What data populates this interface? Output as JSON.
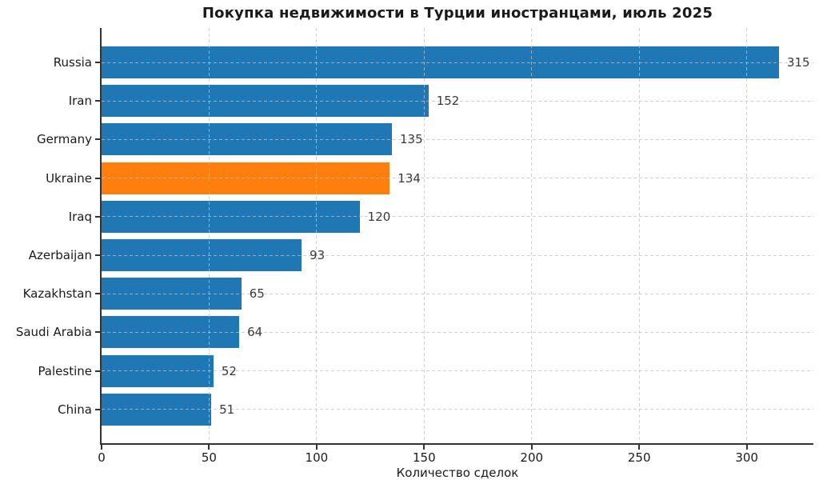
{
  "chart_data": {
    "type": "bar",
    "orientation": "horizontal",
    "title": "Покупка недвижимости в Турции иностранцами, июль 2025",
    "xlabel": "Количество сделок",
    "ylabel": "",
    "categories": [
      "Russia",
      "Iran",
      "Germany",
      "Ukraine",
      "Iraq",
      "Azerbaijan",
      "Kazakhstan",
      "Saudi Arabia",
      "Palestine",
      "China"
    ],
    "values": [
      315,
      152,
      135,
      134,
      120,
      93,
      65,
      64,
      52,
      51
    ],
    "highlight_category": "Ukraine",
    "xticks": [
      0,
      50,
      100,
      150,
      200,
      250,
      300
    ],
    "xlim": [
      0,
      331
    ],
    "grid": true,
    "grid_style": "dashed",
    "value_labels_shown": true,
    "legend": "none"
  },
  "colors": {
    "bar_default": "#1f77b4",
    "bar_highlight": "#ff7f0e",
    "spine": "#333333",
    "grid": "#c0c0c0",
    "title_text": "#1a1a1a",
    "axis_text": "#1a1a1a",
    "value_text": "#3a3a3a",
    "background": "#ffffff"
  }
}
